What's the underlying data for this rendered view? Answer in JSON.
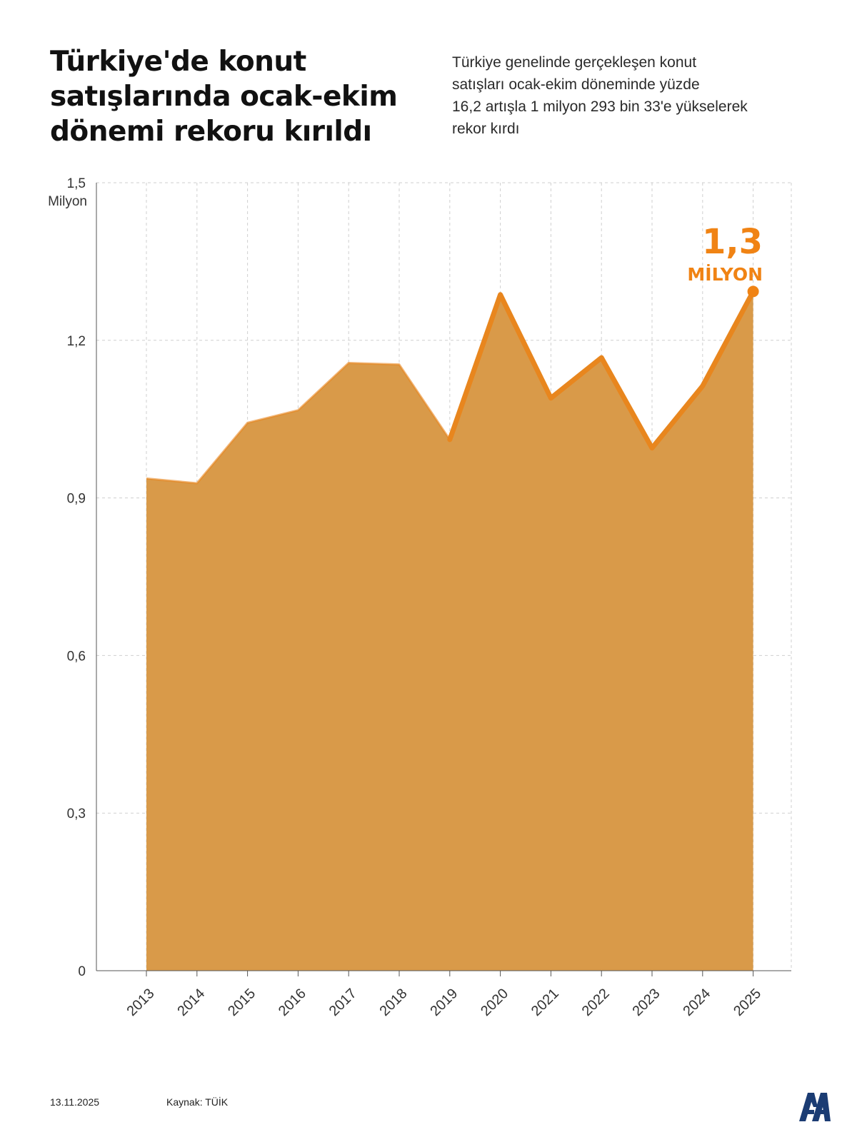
{
  "header": {
    "title_lines": [
      "Türkiye'de konut",
      "satışlarında ocak-ekim",
      "dönemi rekoru kırıldı"
    ],
    "subtitle_lines": [
      "Türkiye genelinde gerçekleşen konut",
      "satışları ocak-ekim döneminde yüzde",
      "16,2 artışla 1 milyon 293 bin 33'e yükselerek",
      "rekor kırdı"
    ]
  },
  "chart_data": {
    "type": "area",
    "categories": [
      "2013",
      "2014",
      "2015",
      "2016",
      "2017",
      "2018",
      "2019",
      "2020",
      "2021",
      "2022",
      "2023",
      "2024",
      "2025"
    ],
    "series": [
      {
        "values": [
          0.937,
          0.928,
          1.043,
          1.067,
          1.157,
          1.154,
          1.011,
          1.287,
          1.09,
          1.167,
          0.995,
          1.113,
          1.293
        ]
      }
    ],
    "ylim": [
      0,
      1.5
    ],
    "yticks": [
      "0",
      "0,3",
      "0,6",
      "0,9",
      "1,2",
      "1,5"
    ],
    "ytick_values": [
      0,
      0.3,
      0.6,
      0.9,
      1.2,
      1.5
    ],
    "yunit": "Milyon",
    "highlight_from_index": 6,
    "callout": {
      "value": "1,3",
      "unit": "MİLYON",
      "index": 12
    },
    "grid": true,
    "colors": {
      "fill": "#d99a49",
      "line": "#e8861e",
      "callout": "#f08314",
      "grid": "#cfcfcf"
    }
  },
  "footer": {
    "date": "13.11.2025",
    "source": "Kaynak: TÜİK"
  },
  "logo": {
    "icon": "aa-logo-icon",
    "color": "#1b3c73"
  }
}
